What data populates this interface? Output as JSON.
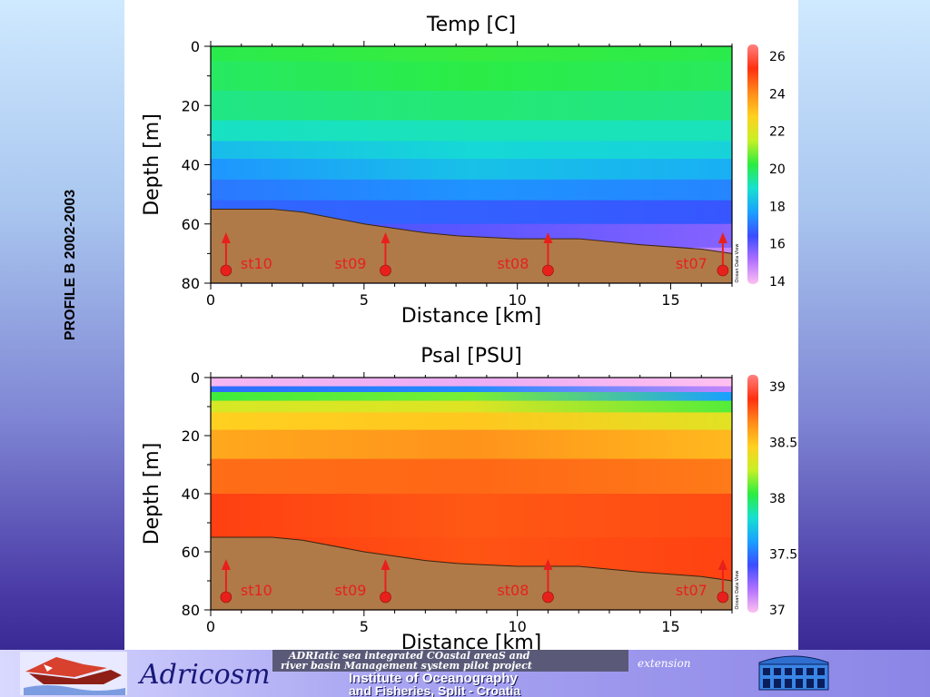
{
  "side_title": "PROFILE  B 2002-2003",
  "footer": {
    "brand": "Adricosm",
    "project_line1": "ADRIatic sea integrated COastal areaS and",
    "project_line2": "river basin Management system pilot project",
    "extension": "extension",
    "institute_line1": "Institute of Oceanography",
    "institute_line2": "and Fisheries, Split - Croatia"
  },
  "colors": {
    "seabed": "#b07a48",
    "station_marker": "#e8201c",
    "station_label": "#e8201c"
  },
  "chart_data": [
    {
      "type": "heatmap",
      "title": "Temp [C]",
      "xlabel": "Distance [km]",
      "ylabel": "Depth [m]",
      "xlim": [
        0,
        17
      ],
      "ylim": [
        80,
        0
      ],
      "x_ticks": [
        "0",
        "5",
        "10",
        "15"
      ],
      "y_ticks": [
        "0",
        "20",
        "40",
        "60",
        "80"
      ],
      "colorbar": {
        "ticks": [
          "26",
          "24",
          "22",
          "20",
          "18",
          "16",
          "14"
        ],
        "range": [
          14,
          26.5
        ],
        "stops": [
          "#ffc0f0",
          "#b070ff",
          "#3b4cff",
          "#1aa0ff",
          "#16e0d0",
          "#2cec40",
          "#c8f026",
          "#ffd020",
          "#ff8a1a",
          "#ff3010",
          "#ff8080"
        ],
        "watermark": "Ocean Data View"
      },
      "stations": [
        {
          "label": "st10",
          "distance": 0.5
        },
        {
          "label": "st09",
          "distance": 5.7
        },
        {
          "label": "st08",
          "distance": 11.0
        },
        {
          "label": "st07",
          "distance": 16.7
        }
      ],
      "seabed_profile": {
        "distance": [
          0,
          2,
          3,
          5,
          7,
          8,
          10,
          12,
          14,
          16,
          17
        ],
        "depth": [
          55,
          55,
          56,
          60,
          63,
          64,
          65,
          65,
          67,
          68.5,
          70
        ]
      },
      "field_layers": [
        {
          "depth": 0,
          "left": 20.2,
          "mid": 20.4,
          "right": 20.2
        },
        {
          "depth": 5,
          "left": 20.1,
          "mid": 20.3,
          "right": 20.1
        },
        {
          "depth": 15,
          "left": 19.8,
          "mid": 20.1,
          "right": 19.9
        },
        {
          "depth": 25,
          "left": 19.5,
          "mid": 19.5,
          "right": 19.4
        },
        {
          "depth": 32,
          "left": 18.7,
          "mid": 18.9,
          "right": 19.0
        },
        {
          "depth": 38,
          "left": 17.9,
          "mid": 18.8,
          "right": 18.5
        },
        {
          "depth": 45,
          "left": 17.3,
          "mid": 18.0,
          "right": 17.6
        },
        {
          "depth": 52,
          "left": 17.0,
          "mid": 17.1,
          "right": 17.1
        },
        {
          "depth": 60,
          "left": 16.8,
          "mid": 16.5,
          "right": 16.2
        },
        {
          "depth": 68,
          "left": 16.5,
          "mid": 15.8,
          "right": 15.2
        },
        {
          "depth": 80,
          "left": 16.3,
          "mid": 15.6,
          "right": 14.6
        }
      ]
    },
    {
      "type": "heatmap",
      "title": "Psal [PSU]",
      "xlabel": "Distance [km]",
      "ylabel": "Depth [m]",
      "xlim": [
        0,
        17
      ],
      "ylim": [
        80,
        0
      ],
      "x_ticks": [
        "0",
        "5",
        "10",
        "15"
      ],
      "y_ticks": [
        "0",
        "20",
        "40",
        "60",
        "80"
      ],
      "colorbar": {
        "ticks": [
          "39",
          "38.5",
          "38",
          "37.5",
          "37"
        ],
        "range": [
          37,
          39
        ],
        "stops": [
          "#ffc0f0",
          "#b070ff",
          "#3b4cff",
          "#1aa0ff",
          "#16e0d0",
          "#2cec40",
          "#c8f026",
          "#ffd020",
          "#ff8a1a",
          "#ff3010",
          "#ff8080"
        ],
        "watermark": "Ocean Data View"
      },
      "stations": [
        {
          "label": "st10",
          "distance": 0.5
        },
        {
          "label": "st09",
          "distance": 5.7
        },
        {
          "label": "st08",
          "distance": 11.0
        },
        {
          "label": "st07",
          "distance": 16.7
        }
      ],
      "seabed_profile": {
        "distance": [
          0,
          2,
          3,
          5,
          7,
          8,
          10,
          12,
          14,
          16,
          17
        ],
        "depth": [
          55,
          55,
          56,
          60,
          63,
          64,
          65,
          65,
          67,
          68.5,
          70
        ]
      },
      "field_layers": [
        {
          "depth": 0,
          "left": 37.0,
          "mid": 37.0,
          "right": 37.0
        },
        {
          "depth": 3,
          "left": 37.05,
          "mid": 37.1,
          "right": 37.0
        },
        {
          "depth": 5,
          "left": 37.9,
          "mid": 38.0,
          "right": 37.3
        },
        {
          "depth": 8,
          "left": 38.15,
          "mid": 38.2,
          "right": 37.9
        },
        {
          "depth": 12,
          "left": 38.35,
          "mid": 38.35,
          "right": 38.2
        },
        {
          "depth": 18,
          "left": 38.45,
          "mid": 38.5,
          "right": 38.38
        },
        {
          "depth": 28,
          "left": 38.58,
          "mid": 38.65,
          "right": 38.55
        },
        {
          "depth": 40,
          "left": 38.75,
          "mid": 38.7,
          "right": 38.72
        },
        {
          "depth": 55,
          "left": 38.78,
          "mid": 38.72,
          "right": 38.76
        },
        {
          "depth": 80,
          "left": 38.78,
          "mid": 38.72,
          "right": 38.76
        }
      ]
    }
  ]
}
